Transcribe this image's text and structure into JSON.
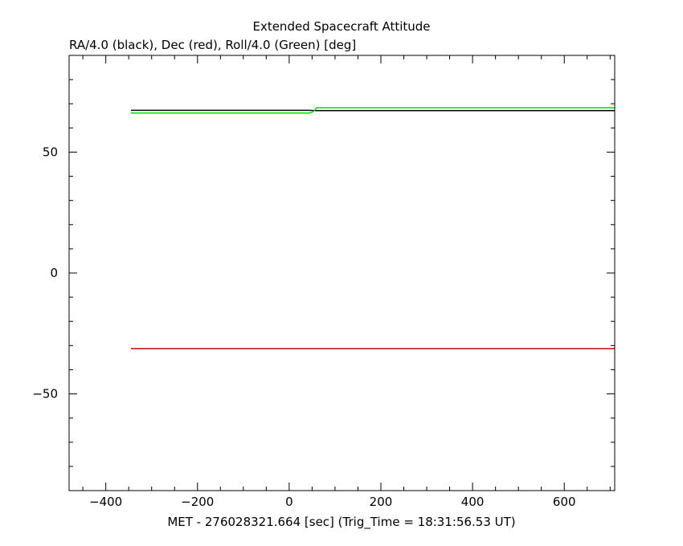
{
  "chart_data": {
    "type": "line",
    "title": "Extended Spacecraft Attitude",
    "subtitle": "RA/4.0 (black), Dec (red), Roll/4.0 (Green) [deg]",
    "xlabel": "MET - 276028321.664 [sec] (Trig_Time = 18:31:56.53 UT)",
    "ylabel": "",
    "xlim": [
      -480,
      710
    ],
    "ylim": [
      -90,
      90
    ],
    "x_ticks": [
      -400,
      -200,
      0,
      200,
      400,
      600
    ],
    "x_tick_labels": [
      "−400",
      "−200",
      "0",
      "200",
      "400",
      "600"
    ],
    "y_ticks": [
      -50,
      0,
      50
    ],
    "y_tick_labels": [
      "−50",
      "0",
      "50"
    ],
    "grid": false,
    "series": [
      {
        "color": "#000000",
        "points": [
          [
            -345,
            67.3
          ],
          [
            40,
            67.3
          ],
          [
            60,
            67.2
          ],
          [
            710,
            67.2
          ]
        ]
      },
      {
        "color": "#cc0000",
        "points": [
          [
            -345,
            -31.3
          ],
          [
            710,
            -31.3
          ]
        ]
      },
      {
        "color": "#00dd00",
        "points": [
          [
            -345,
            66.2
          ],
          [
            45,
            66.2
          ],
          [
            50,
            66.5
          ],
          [
            55,
            67.2
          ],
          [
            60,
            68.3
          ],
          [
            710,
            68.3
          ]
        ]
      }
    ]
  }
}
